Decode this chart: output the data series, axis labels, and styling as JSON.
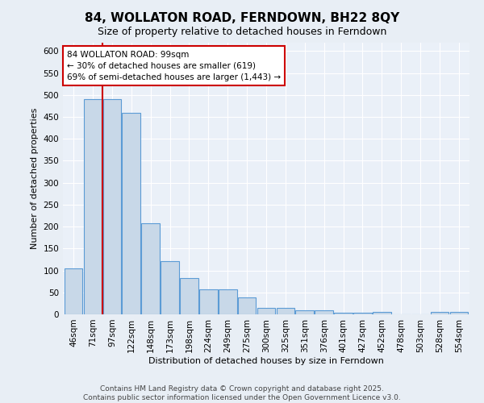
{
  "title": "84, WOLLATON ROAD, FERNDOWN, BH22 8QY",
  "subtitle": "Size of property relative to detached houses in Ferndown",
  "xlabel": "Distribution of detached houses by size in Ferndown",
  "ylabel": "Number of detached properties",
  "footer_line1": "Contains HM Land Registry data © Crown copyright and database right 2025.",
  "footer_line2": "Contains public sector information licensed under the Open Government Licence v3.0.",
  "bar_labels": [
    "46sqm",
    "71sqm",
    "97sqm",
    "122sqm",
    "148sqm",
    "173sqm",
    "198sqm",
    "224sqm",
    "249sqm",
    "275sqm",
    "300sqm",
    "325sqm",
    "351sqm",
    "376sqm",
    "401sqm",
    "427sqm",
    "452sqm",
    "478sqm",
    "503sqm",
    "528sqm",
    "554sqm"
  ],
  "values": [
    105,
    490,
    490,
    460,
    207,
    122,
    82,
    57,
    57,
    38,
    14,
    14,
    10,
    10,
    3,
    3,
    5,
    0,
    0,
    5,
    5
  ],
  "bar_color": "#c8d8e8",
  "bar_edge_color": "#5b9bd5",
  "annotation_text": "84 WOLLATON ROAD: 99sqm\n← 30% of detached houses are smaller (619)\n69% of semi-detached houses are larger (1,443) →",
  "annotation_box_edge": "#cc0000",
  "red_line_color": "#cc0000",
  "red_line_x": 1.5,
  "ylim": [
    0,
    620
  ],
  "yticks": [
    0,
    50,
    100,
    150,
    200,
    250,
    300,
    350,
    400,
    450,
    500,
    550,
    600
  ],
  "bg_color": "#e8eef5",
  "plot_bg_color": "#eaf0f8",
  "grid_color": "#ffffff",
  "title_fontsize": 11,
  "subtitle_fontsize": 9,
  "axis_label_fontsize": 8,
  "tick_fontsize": 7.5,
  "footer_fontsize": 6.5,
  "annotation_fontsize": 7.5
}
